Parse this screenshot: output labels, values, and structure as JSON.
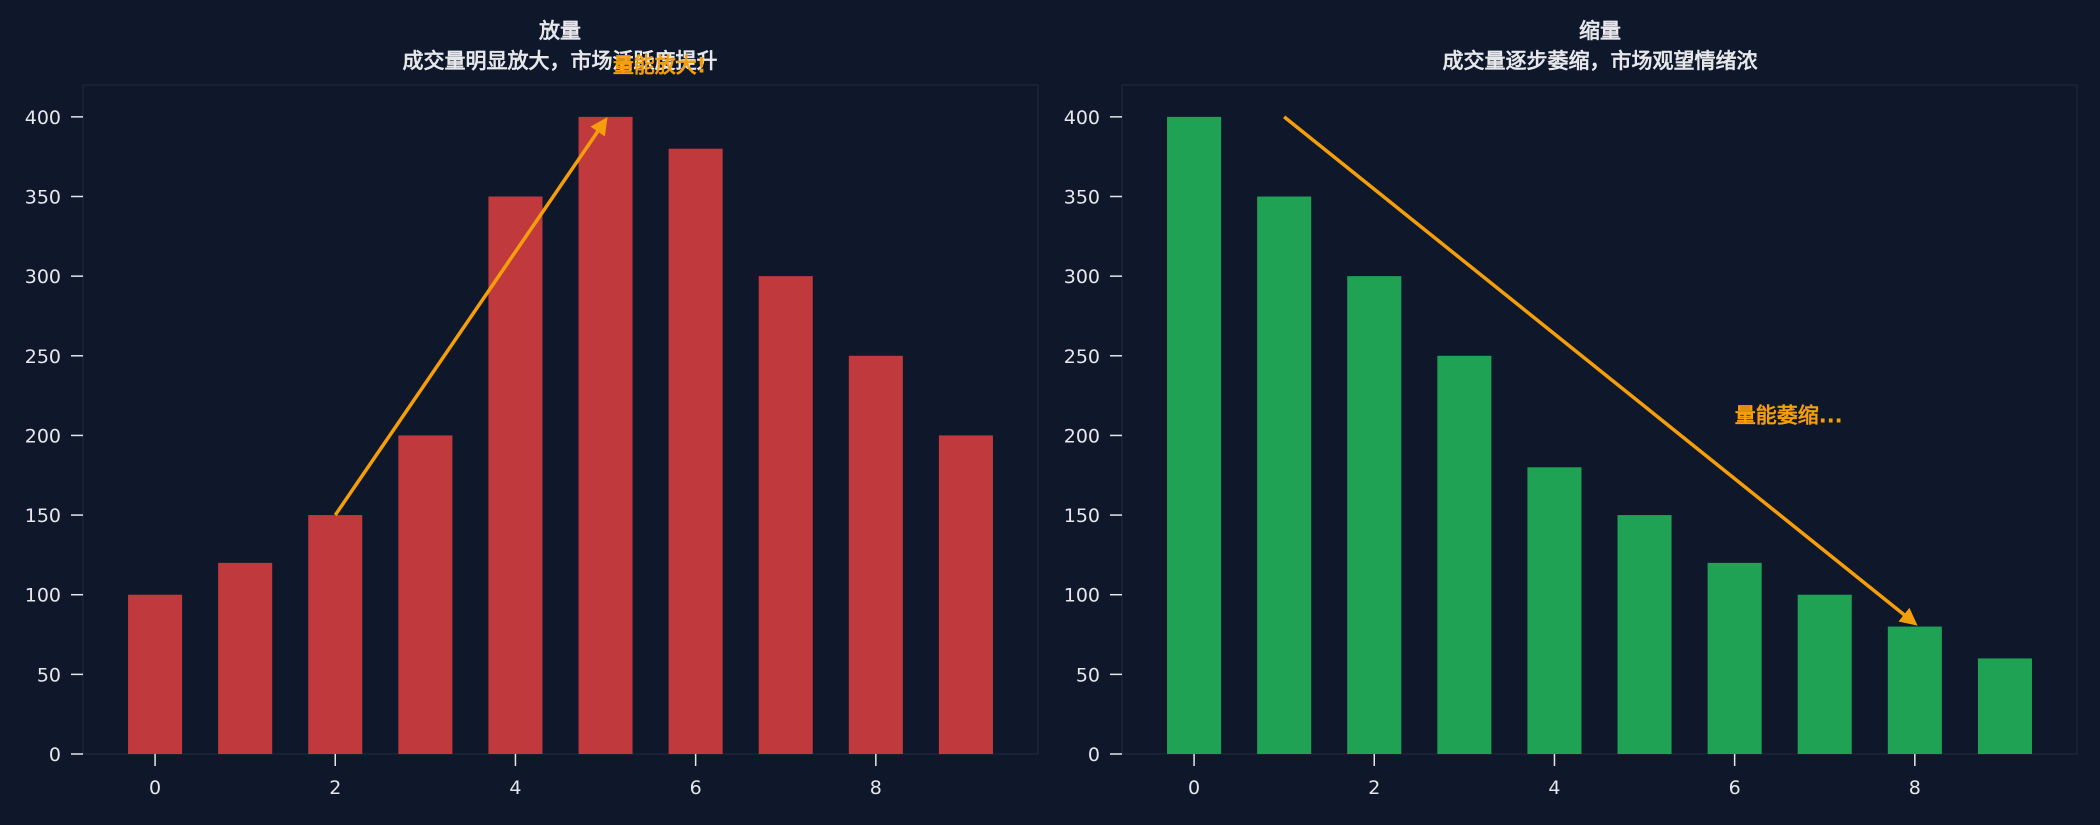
{
  "theme": {
    "background": "#0f172a",
    "plot_background": "#0f172a",
    "frame_color": "#1f2a40",
    "text_color": "#e5e7eb",
    "arrow_color": "#f59e0b"
  },
  "chart_data": [
    {
      "type": "bar",
      "title": "放量",
      "subtitle": "成交量明显放大，市场活跃度提升",
      "color": "#c0393d",
      "x": [
        0,
        1,
        2,
        3,
        4,
        5,
        6,
        7,
        8,
        9
      ],
      "values": [
        100,
        120,
        150,
        200,
        350,
        400,
        380,
        300,
        250,
        200
      ],
      "xticks": [
        0,
        2,
        4,
        6,
        8
      ],
      "yticks": [
        0,
        50,
        100,
        150,
        200,
        250,
        300,
        350,
        400
      ],
      "xlim": [
        -0.8,
        9.8
      ],
      "ylim": [
        0,
        420
      ],
      "grid": false,
      "annotation": {
        "text": "量能放大!",
        "text_x": 5.6,
        "text_y": 428,
        "arrow_from": [
          2,
          150
        ],
        "arrow_to": [
          5,
          398
        ]
      }
    },
    {
      "type": "bar",
      "title": "缩量",
      "subtitle": "成交量逐步萎缩，市场观望情绪浓",
      "color": "#1fa254",
      "x": [
        0,
        1,
        2,
        3,
        4,
        5,
        6,
        7,
        8,
        9
      ],
      "values": [
        400,
        350,
        300,
        250,
        180,
        150,
        120,
        100,
        80,
        60
      ],
      "xticks": [
        0,
        2,
        4,
        6,
        8
      ],
      "yticks": [
        0,
        50,
        100,
        150,
        200,
        250,
        300,
        350,
        400
      ],
      "xlim": [
        -0.8,
        9.8
      ],
      "ylim": [
        0,
        420
      ],
      "grid": false,
      "annotation": {
        "text": "量能萎缩...",
        "text_x": 6.6,
        "text_y": 208,
        "arrow_from": [
          1,
          400
        ],
        "arrow_to": [
          8,
          82
        ]
      }
    }
  ]
}
